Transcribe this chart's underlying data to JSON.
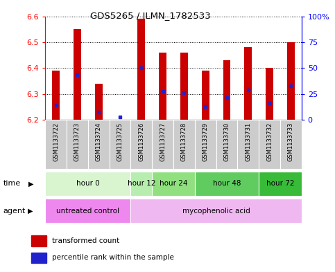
{
  "title": "GDS5265 / ILMN_1782533",
  "samples": [
    "GSM1133722",
    "GSM1133723",
    "GSM1133724",
    "GSM1133725",
    "GSM1133726",
    "GSM1133727",
    "GSM1133728",
    "GSM1133729",
    "GSM1133730",
    "GSM1133731",
    "GSM1133732",
    "GSM1133733"
  ],
  "bar_heights": [
    6.39,
    6.55,
    6.34,
    6.2,
    6.59,
    6.46,
    6.46,
    6.39,
    6.43,
    6.48,
    6.4,
    6.5
  ],
  "bar_base": 6.2,
  "blue_dot_values": [
    6.255,
    6.375,
    6.23,
    6.21,
    6.4,
    6.31,
    6.305,
    6.25,
    6.285,
    6.315,
    6.265,
    6.33
  ],
  "ylim": [
    6.2,
    6.6
  ],
  "yticks_left": [
    6.2,
    6.3,
    6.4,
    6.5,
    6.6
  ],
  "yticks_right_vals": [
    0,
    25,
    50,
    75,
    100
  ],
  "yticks_right_labels": [
    "0",
    "25",
    "50",
    "75",
    "100%"
  ],
  "bar_color": "#cc0000",
  "blue_color": "#2222cc",
  "time_groups": [
    {
      "label": "hour 0",
      "start": 0,
      "end": 4,
      "color": "#d8f5d0"
    },
    {
      "label": "hour 12",
      "start": 4,
      "end": 5,
      "color": "#b8edb0"
    },
    {
      "label": "hour 24",
      "start": 5,
      "end": 7,
      "color": "#90e080"
    },
    {
      "label": "hour 48",
      "start": 7,
      "end": 10,
      "color": "#60cc60"
    },
    {
      "label": "hour 72",
      "start": 10,
      "end": 12,
      "color": "#38bb38"
    }
  ],
  "agent_groups": [
    {
      "label": "untreated control",
      "start": 0,
      "end": 4,
      "color": "#ee88ee"
    },
    {
      "label": "mycophenolic acid",
      "start": 4,
      "end": 12,
      "color": "#f0b8f0"
    }
  ],
  "legend_items": [
    {
      "label": "transformed count",
      "color": "#cc0000"
    },
    {
      "label": "percentile rank within the sample",
      "color": "#2222cc"
    }
  ],
  "sample_bg_color": "#cccccc",
  "bar_width": 0.35
}
